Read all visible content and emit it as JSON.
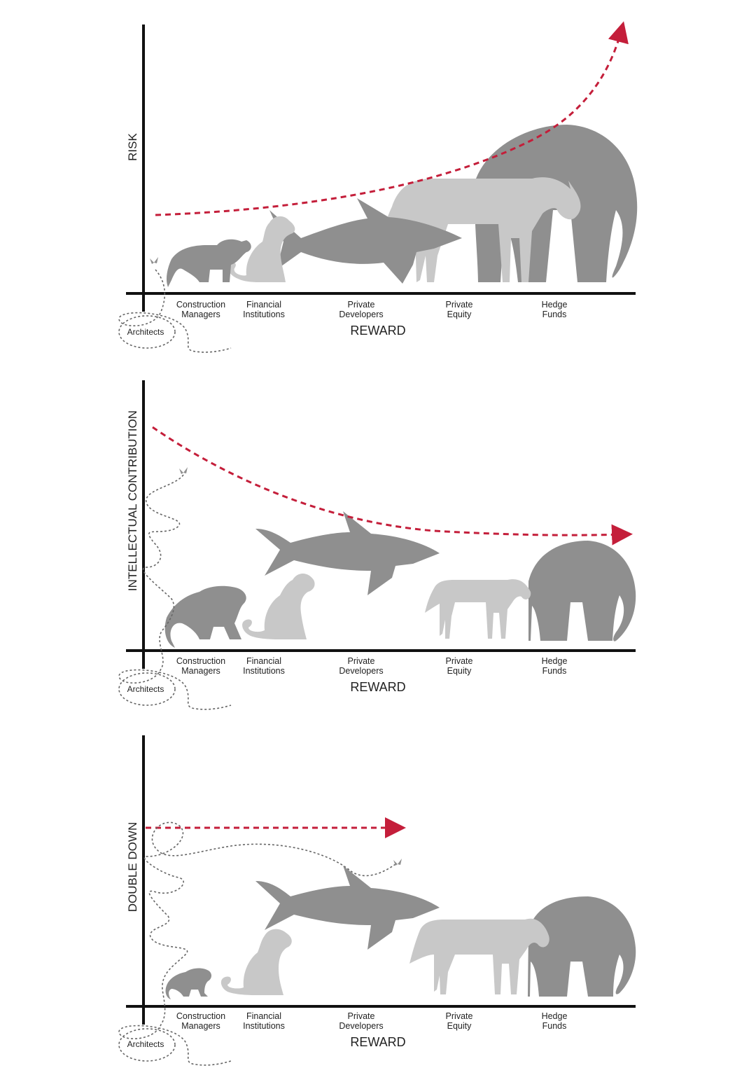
{
  "panels": [
    {
      "y_label": "RISK",
      "x_label": "REWARD",
      "curve": "rising",
      "animal_scale": "increasing"
    },
    {
      "y_label": "INTELLECTUAL CONTRIBUTION",
      "x_label": "REWARD",
      "curve": "falling",
      "animal_scale": "mixed"
    },
    {
      "y_label": "DOUBLE DOWN",
      "x_label": "REWARD",
      "curve": "flat-short",
      "animal_scale": "mixed"
    }
  ],
  "categories": [
    {
      "line1": "Construction",
      "line2": "Managers",
      "animal": "monkey"
    },
    {
      "line1": "Financial",
      "line2": "Institutions",
      "animal": "dog"
    },
    {
      "line1": "Private",
      "line2": "Developers",
      "animal": "shark"
    },
    {
      "line1": "Private",
      "line2": "Equity",
      "animal": "horse"
    },
    {
      "line1": "Hedge",
      "line2": "Funds",
      "animal": "elephant"
    }
  ],
  "origin_label": "Architects",
  "colors": {
    "axis": "#111111",
    "trend": "#c41e3a",
    "dark_animal": "#8f8f8f",
    "light_animal": "#c8c8c8",
    "path": "#666666"
  },
  "icons": {
    "butterfly": "butterfly-icon"
  }
}
